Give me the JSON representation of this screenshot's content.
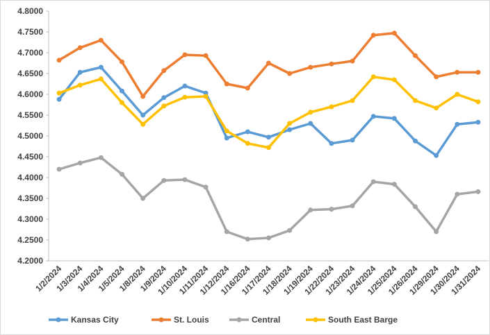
{
  "chart_data": {
    "type": "line",
    "categories": [
      "1/2/2024",
      "1/3/2024",
      "1/4/2024",
      "1/5/2024",
      "1/8/2024",
      "1/9/2024",
      "1/10/2024",
      "1/11/2024",
      "1/12/2024",
      "1/16/2024",
      "1/17/2024",
      "1/18/2024",
      "1/19/2024",
      "1/22/2024",
      "1/23/2024",
      "1/24/2024",
      "1/25/2024",
      "1/26/2024",
      "1/29/2024",
      "1/30/2024",
      "1/31/2024"
    ],
    "series": [
      {
        "name": "Kansas City",
        "color": "#5b9bd5",
        "values": [
          4.588,
          4.653,
          4.665,
          4.608,
          4.55,
          4.592,
          4.62,
          4.603,
          4.495,
          4.51,
          4.497,
          4.515,
          4.53,
          4.482,
          4.49,
          4.547,
          4.542,
          4.488,
          4.453,
          4.528,
          4.533
        ]
      },
      {
        "name": "St. Louis",
        "color": "#ed7d31",
        "values": [
          4.682,
          4.712,
          4.73,
          4.678,
          4.595,
          4.657,
          4.695,
          4.693,
          4.625,
          4.615,
          4.675,
          4.65,
          4.665,
          4.673,
          4.68,
          4.742,
          4.747,
          4.693,
          4.642,
          4.653,
          4.653
        ]
      },
      {
        "name": "Central",
        "color": "#a5a5a5",
        "values": [
          4.42,
          4.435,
          4.448,
          4.408,
          4.35,
          4.393,
          4.395,
          4.377,
          4.27,
          4.252,
          4.255,
          4.273,
          4.322,
          4.324,
          4.332,
          4.39,
          4.384,
          4.33,
          4.27,
          4.36,
          4.366
        ]
      },
      {
        "name": "South East Barge",
        "color": "#ffc000",
        "values": [
          4.603,
          4.622,
          4.637,
          4.58,
          4.528,
          4.572,
          4.593,
          4.595,
          4.512,
          4.482,
          4.472,
          4.53,
          4.557,
          4.57,
          4.585,
          4.642,
          4.635,
          4.585,
          4.567,
          4.6,
          4.582
        ]
      }
    ],
    "ylim": [
      4.2,
      4.8
    ],
    "yticks": [
      {
        "value": 4.2,
        "label": "4.2000"
      },
      {
        "value": 4.25,
        "label": "4.2500"
      },
      {
        "value": 4.3,
        "label": "4.3000"
      },
      {
        "value": 4.35,
        "label": "4.3500"
      },
      {
        "value": 4.4,
        "label": "4.4000"
      },
      {
        "value": 4.45,
        "label": "4.4500"
      },
      {
        "value": 4.5,
        "label": "4.5000"
      },
      {
        "value": 4.55,
        "label": "4.5500"
      },
      {
        "value": 4.6,
        "label": "4.6000"
      },
      {
        "value": 4.65,
        "label": "4.6500"
      },
      {
        "value": 4.7,
        "label": "4.7000"
      },
      {
        "value": 4.75,
        "label": "4.7500"
      },
      {
        "value": 4.8,
        "label": "4.8000"
      }
    ],
    "grid": false,
    "legend": "bottom"
  }
}
